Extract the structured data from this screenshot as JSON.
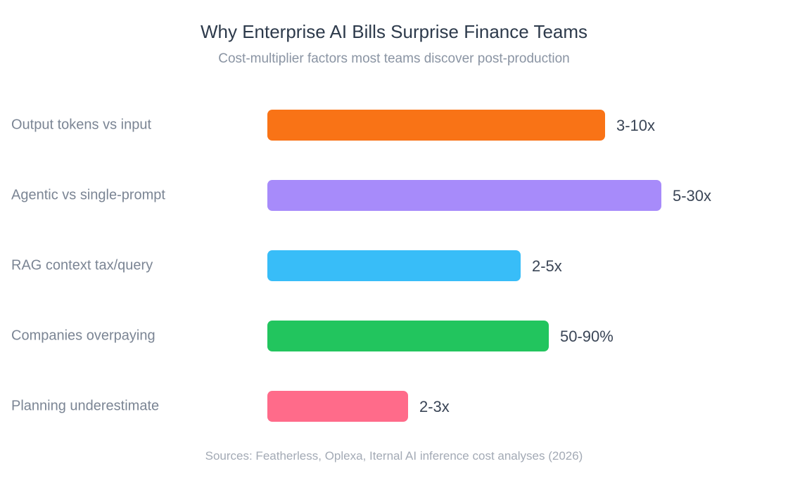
{
  "header": {
    "title": "Why Enterprise AI Bills Surprise Finance Teams",
    "subtitle": "Cost-multiplier factors most teams discover post-production"
  },
  "footer": {
    "source": "Sources: Featherless, Oplexa, Iternal AI inference cost analyses (2026)"
  },
  "chart_data": {
    "type": "bar",
    "orientation": "horizontal",
    "title": "Why Enterprise AI Bills Surprise Finance Teams",
    "subtitle": "Cost-multiplier factors most teams discover post-production",
    "xlabel": "",
    "ylabel": "",
    "grid": false,
    "legend": "none",
    "xlim": [
      0,
      10
    ],
    "categories": [
      "Output tokens vs input",
      "Agentic vs single-prompt",
      "RAG context tax/query",
      "Companies overpaying",
      "Planning underestimate"
    ],
    "values": [
      6.0,
      7.0,
      4.5,
      5.0,
      2.5
    ],
    "value_labels": [
      "3-10x",
      "5-30x",
      "2-5x",
      "50-90%",
      "2-3x"
    ],
    "colors": [
      "#f97316",
      "#a78bfa",
      "#38bdf8",
      "#22c55e",
      "#ff6b8a"
    ],
    "label_color": "#7b8594",
    "value_label_color": "#3a4556"
  }
}
